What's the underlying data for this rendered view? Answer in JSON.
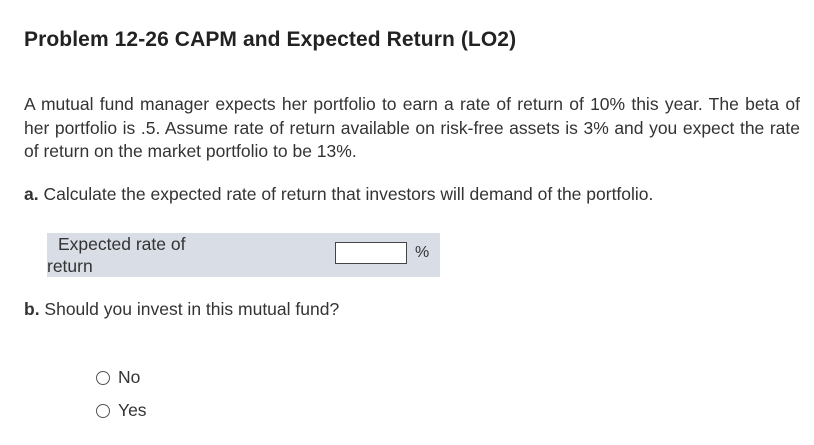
{
  "problem": {
    "title": "Problem 12-26 CAPM and Expected Return (LO2)",
    "intro": "A mutual fund manager expects her portfolio to earn a rate of return of 10% this year. The beta of her portfolio is .5. Assume rate of return available on risk-free assets is 3% and you expect the rate of return on the market portfolio to be 13%."
  },
  "part_a": {
    "letter": "a.",
    "question": " Calculate the expected rate of return that investors will demand of the portfolio.",
    "answer_label": "Expected rate of return",
    "answer_value": "",
    "answer_unit": "%"
  },
  "part_b": {
    "letter": "b.",
    "question": " Should you invest in this mutual fund?",
    "options": [
      {
        "label": "No"
      },
      {
        "label": "Yes"
      }
    ]
  }
}
